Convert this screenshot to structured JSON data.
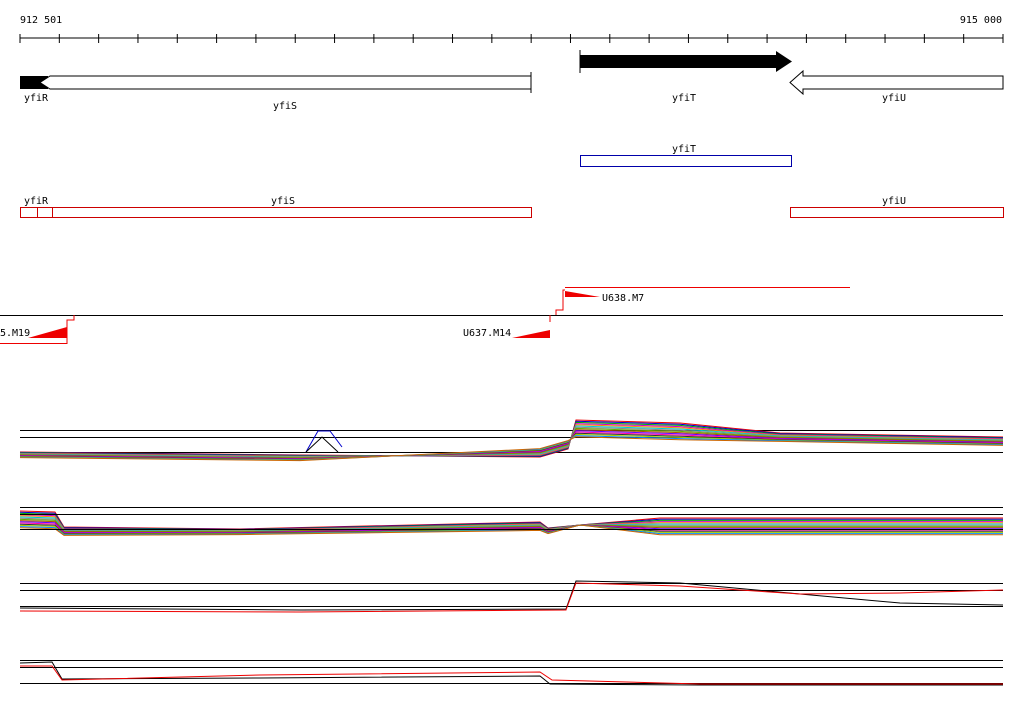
{
  "ruler": {
    "start_label": "912 501",
    "end_label": "915 000"
  },
  "genes": [
    {
      "label": "yfiR"
    },
    {
      "label": "yfiS"
    },
    {
      "label": "yfiT"
    },
    {
      "label": "yfiU"
    }
  ],
  "blue_features": [
    {
      "label": "yfiT"
    }
  ],
  "red_features": [
    {
      "label": "yfiR"
    },
    {
      "label": "yfiS"
    },
    {
      "label": "yfiU"
    }
  ],
  "probes": [
    {
      "label": "U638.M7"
    },
    {
      "label": "U637.M14"
    },
    {
      "label": "5.M19"
    }
  ]
}
